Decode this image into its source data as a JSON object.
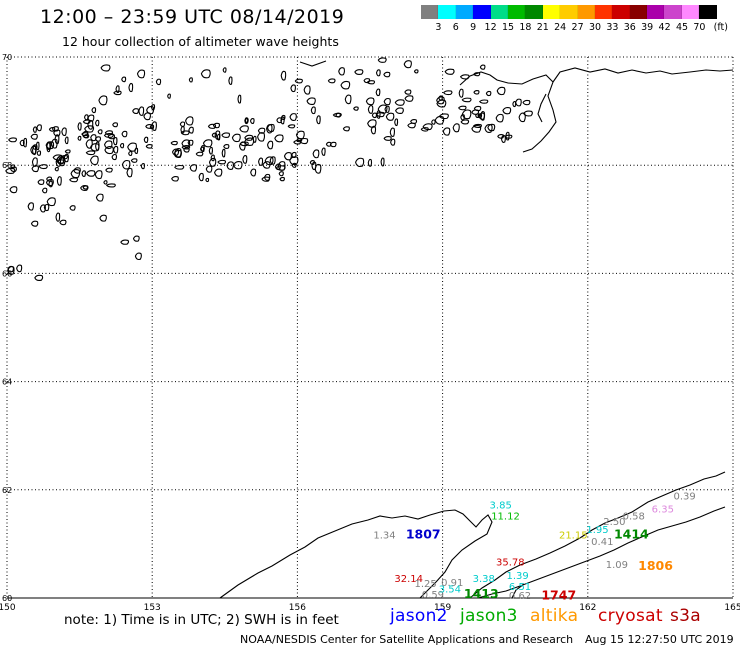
{
  "header": {
    "title": "12:00 – 23:59 UTC 08/14/2019",
    "subtitle": "12 hour collection of altimeter wave heights"
  },
  "legend": {
    "colors": [
      "#808080",
      "#00ffff",
      "#00aaff",
      "#0000ff",
      "#00dd88",
      "#00bb00",
      "#008800",
      "#ffff00",
      "#ffcc00",
      "#ff9900",
      "#ff3300",
      "#cc0000",
      "#880000",
      "#aa00aa",
      "#cc44cc",
      "#ff88ff",
      "#000000"
    ],
    "labels": [
      "3",
      "6",
      "9",
      "12",
      "15",
      "18",
      "21",
      "24",
      "27",
      "30",
      "33",
      "36",
      "39",
      "42",
      "45",
      "70",
      "(ft)"
    ]
  },
  "map": {
    "lat_labels": [
      "70",
      "68",
      "66",
      "64",
      "62",
      "60"
    ],
    "lon_labels": [
      "150",
      "153",
      "156",
      "159",
      "162",
      "165"
    ],
    "observations": [
      {
        "text": "1.34",
        "color": "#808080",
        "lon": 157.8,
        "lat": 61.1
      },
      {
        "text": "1807",
        "color": "#0000cc",
        "lon": 158.6,
        "lat": 61.1,
        "bold": true
      },
      {
        "text": "3.85",
        "color": "#00cccc",
        "lon": 160.2,
        "lat": 61.65
      },
      {
        "text": "11.12",
        "color": "#00bb00",
        "lon": 160.3,
        "lat": 61.45
      },
      {
        "text": "32.14",
        "color": "#cc0000",
        "lon": 158.3,
        "lat": 60.3
      },
      {
        "text": "1.25",
        "color": "#808080",
        "lon": 158.65,
        "lat": 60.2
      },
      {
        "text": "0.91",
        "color": "#808080",
        "lon": 159.2,
        "lat": 60.22
      },
      {
        "text": "3.38",
        "color": "#00cccc",
        "lon": 159.85,
        "lat": 60.3
      },
      {
        "text": "1.39",
        "color": "#00cccc",
        "lon": 160.55,
        "lat": 60.35
      },
      {
        "text": "35.78",
        "color": "#cc0000",
        "lon": 160.4,
        "lat": 60.6
      },
      {
        "text": "6.51",
        "color": "#00cccc",
        "lon": 160.6,
        "lat": 60.15
      },
      {
        "text": "0.59",
        "color": "#808080",
        "lon": 158.8,
        "lat": 60.0
      },
      {
        "text": "3.54",
        "color": "#00cccc",
        "lon": 159.15,
        "lat": 60.1
      },
      {
        "text": "1413",
        "color": "#008800",
        "lon": 159.8,
        "lat": 60.0,
        "bold": true
      },
      {
        "text": "0.62",
        "color": "#808080",
        "lon": 160.6,
        "lat": 59.98
      },
      {
        "text": "1747",
        "color": "#cc0000",
        "lon": 161.4,
        "lat": 59.97,
        "bold": true
      },
      {
        "text": "21.15",
        "color": "#cccc00",
        "lon": 161.7,
        "lat": 61.1
      },
      {
        "text": "1.95",
        "color": "#00cccc",
        "lon": 162.2,
        "lat": 61.2
      },
      {
        "text": "2.50",
        "color": "#808080",
        "lon": 162.55,
        "lat": 61.35
      },
      {
        "text": "0.58",
        "color": "#808080",
        "lon": 162.95,
        "lat": 61.45
      },
      {
        "text": "6.35",
        "color": "#dd88dd",
        "lon": 163.55,
        "lat": 61.58
      },
      {
        "text": "0.39",
        "color": "#808080",
        "lon": 164.0,
        "lat": 61.82
      },
      {
        "text": "1414",
        "color": "#008800",
        "lon": 162.9,
        "lat": 61.1,
        "bold": true
      },
      {
        "text": "0.41",
        "color": "#808080",
        "lon": 162.3,
        "lat": 60.98
      },
      {
        "text": "1.09",
        "color": "#808080",
        "lon": 162.6,
        "lat": 60.55
      },
      {
        "text": "1806",
        "color": "#ff8800",
        "lon": 163.4,
        "lat": 60.52,
        "bold": true
      }
    ]
  },
  "note": "note: 1) Time is in UTC; 2) SWH is in feet",
  "satellites": [
    {
      "name": "jason2",
      "color": "#0000ff"
    },
    {
      "name": "jason3",
      "color": "#00aa00"
    },
    {
      "name": "altika",
      "color": "#ff9900"
    },
    {
      "name": "cryosat",
      "color": "#cc0000"
    },
    {
      "name": "s3a",
      "color": "#aa0000"
    }
  ],
  "footer": {
    "credit": "NOAA/NESDIS Center for Satellite Applications and Research",
    "timestamp": "Aug 15 12:27:50 UTC 2019"
  }
}
